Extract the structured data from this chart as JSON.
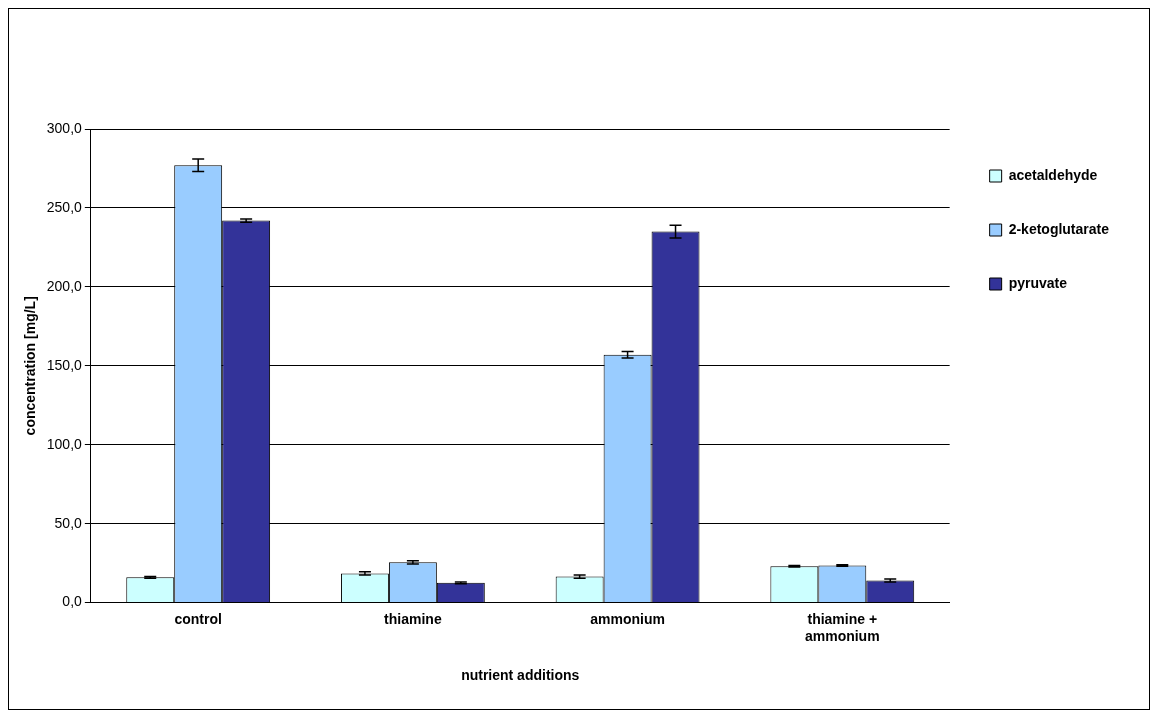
{
  "chart_data": {
    "type": "bar",
    "xlabel": "nutrient additions",
    "ylabel": "concentration [mg/L]",
    "categories": [
      "control",
      "thiamine",
      "ammonium",
      "thiamine + ammonium"
    ],
    "series": [
      {
        "name": "acetaldehyde",
        "color": "#ccffff",
        "values": [
          16,
          18.5,
          16.5,
          23
        ],
        "errors": [
          0.5,
          1,
          1,
          0.5
        ]
      },
      {
        "name": "2-ketoglutarate",
        "color": "#99ccff",
        "values": [
          277,
          25.5,
          157,
          23.5
        ],
        "errors": [
          4,
          1,
          2,
          0.5
        ]
      },
      {
        "name": "pyruvate",
        "color": "#333399",
        "values": [
          242,
          12.5,
          235,
          14
        ],
        "errors": [
          1,
          0.5,
          4,
          1
        ]
      }
    ],
    "ylim": [
      0,
      300
    ],
    "yticks": [
      {
        "value": 0,
        "label": "0,0"
      },
      {
        "value": 50,
        "label": "50,0"
      },
      {
        "value": 100,
        "label": "100,0"
      },
      {
        "value": 150,
        "label": "150,0"
      },
      {
        "value": 200,
        "label": "200,0"
      },
      {
        "value": 250,
        "label": "250,0"
      },
      {
        "value": 300,
        "label": "300,0"
      }
    ],
    "grid": "y",
    "legend": "right"
  }
}
